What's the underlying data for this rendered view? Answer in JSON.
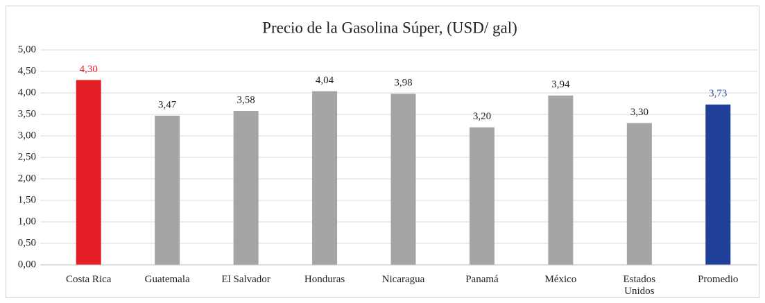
{
  "chart_data": {
    "type": "bar",
    "title": "Precio de la Gasolina Súper, (USD/ gal)",
    "categories": [
      "Costa Rica",
      "Guatemala",
      "El Salvador",
      "Honduras",
      "Nicaragua",
      "Panamá",
      "México",
      "Estados Unidos",
      "Promedio"
    ],
    "values": [
      4.3,
      3.47,
      3.58,
      4.04,
      3.98,
      3.2,
      3.94,
      3.3,
      3.73
    ],
    "value_labels": [
      "4,30",
      "3,47",
      "3,58",
      "4,04",
      "3,98",
      "3,20",
      "3,94",
      "3,30",
      "3,73"
    ],
    "colors": [
      "#e31e24",
      "#a5a5a5",
      "#a5a5a5",
      "#a5a5a5",
      "#a5a5a5",
      "#a5a5a5",
      "#a5a5a5",
      "#a5a5a5",
      "#1f3f99"
    ],
    "label_colors": [
      "#e31e24",
      "#222222",
      "#222222",
      "#222222",
      "#222222",
      "#222222",
      "#222222",
      "#222222",
      "#2f4f9f"
    ],
    "ylim": [
      0,
      5
    ],
    "yticks": [
      {
        "value": 0,
        "label": "0,00"
      },
      {
        "value": 0.5,
        "label": "0,50"
      },
      {
        "value": 1,
        "label": "1,00"
      },
      {
        "value": 1.5,
        "label": "1,50"
      },
      {
        "value": 2,
        "label": "2,00"
      },
      {
        "value": 2.5,
        "label": "2,50"
      },
      {
        "value": 3,
        "label": "3,00"
      },
      {
        "value": 3.5,
        "label": "3,50"
      },
      {
        "value": 4,
        "label": "4,00"
      },
      {
        "value": 4.5,
        "label": "4,50"
      },
      {
        "value": 5,
        "label": "5,00"
      }
    ],
    "grid": true
  }
}
